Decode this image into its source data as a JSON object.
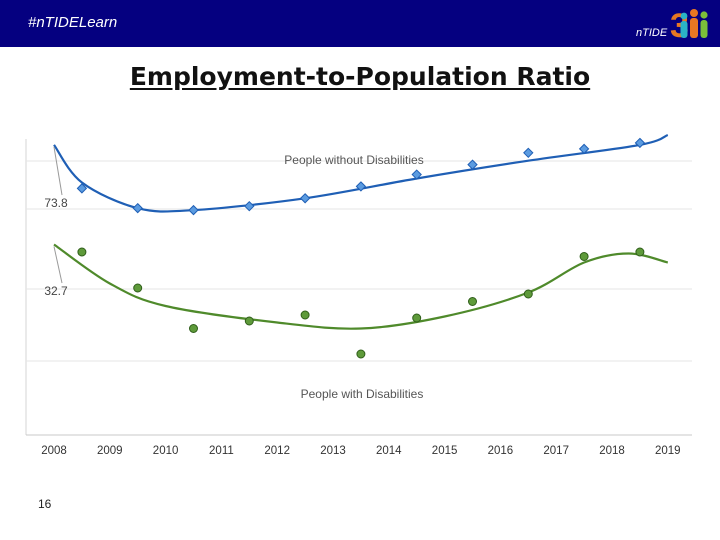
{
  "header": {
    "hashtag": "#nTIDELearn",
    "logo_text": "nTIDE",
    "logo_number": "3",
    "colors": {
      "bar": "#050080",
      "logo_orange": "#e87722",
      "logo_teal": "#2ab3c6",
      "logo_green": "#7bbf3a"
    }
  },
  "slide": {
    "title": "Employment-to-Population Ratio",
    "page_number": "16"
  },
  "chart_data": {
    "type": "scatter",
    "title": "",
    "xlabel": "",
    "ylabel": "",
    "categories": [
      "2008",
      "2009",
      "2010",
      "2011",
      "2012",
      "2013",
      "2014",
      "2015",
      "2016",
      "2017",
      "2018",
      "2019"
    ],
    "grid": "horizontal",
    "series": [
      {
        "name": "People without Disabilities",
        "color": "#1f5fb5",
        "marker": "diamond",
        "start_value_label": "73.8",
        "points": [
          [
            2008.5,
            74.6
          ],
          [
            2009.5,
            73.6
          ],
          [
            2010.5,
            73.5
          ],
          [
            2011.5,
            73.7
          ],
          [
            2012.5,
            74.1
          ],
          [
            2013.5,
            74.7
          ],
          [
            2014.5,
            75.3
          ],
          [
            2015.5,
            75.8
          ],
          [
            2016.5,
            76.4
          ],
          [
            2017.5,
            76.6
          ],
          [
            2018.5,
            76.9
          ]
        ]
      },
      {
        "name": "People with Disabilities",
        "color": "#4f8a2b",
        "marker": "circle",
        "start_value_label": "32.7",
        "points": [
          [
            2008.5,
            61.7
          ],
          [
            2009.5,
            59.3
          ],
          [
            2010.5,
            56.6
          ],
          [
            2011.5,
            57.1
          ],
          [
            2012.5,
            57.5
          ],
          [
            2013.5,
            54.9
          ],
          [
            2014.5,
            57.3
          ],
          [
            2015.5,
            58.4
          ],
          [
            2016.5,
            58.9
          ],
          [
            2017.5,
            61.4
          ],
          [
            2018.5,
            61.7
          ]
        ]
      }
    ]
  }
}
